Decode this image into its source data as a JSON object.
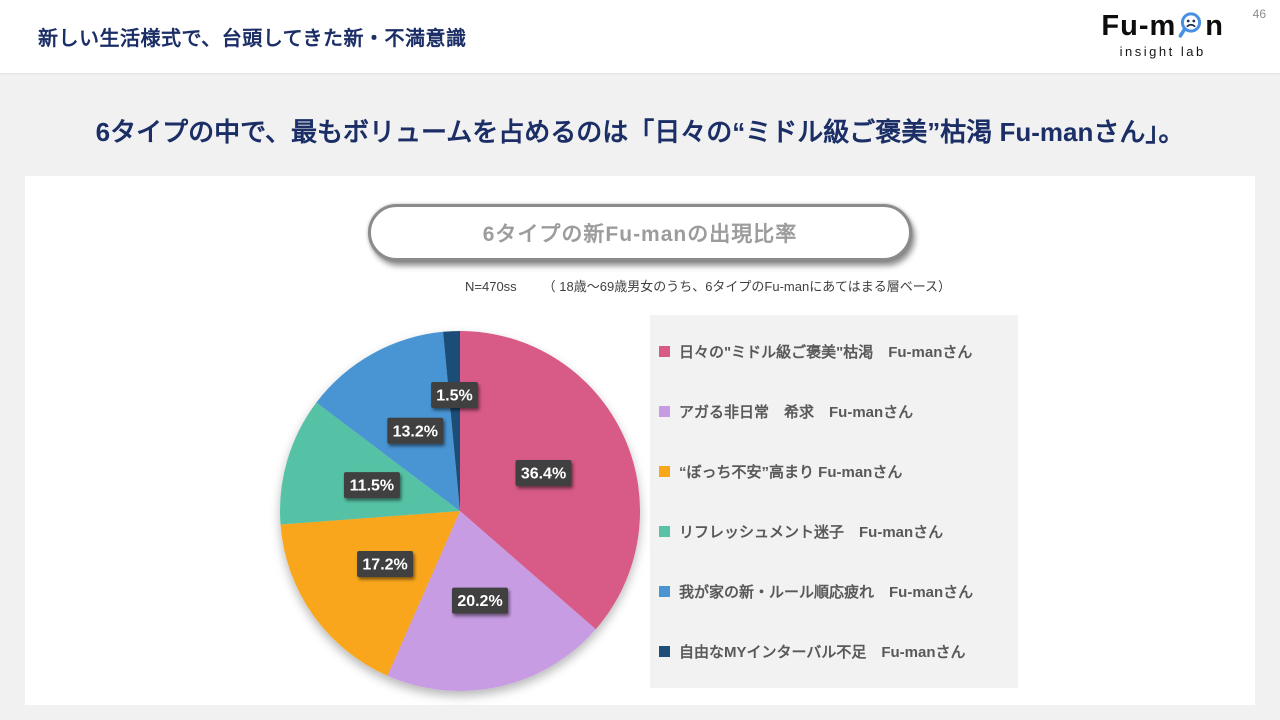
{
  "page_number": "46",
  "header": {
    "title": "新しい生活様式で、台頭してきた新・不満意識"
  },
  "logo": {
    "text_left": "Fu-m",
    "text_right": "n",
    "subtext": "insight lab",
    "icon": "magnifier-sad-face-icon",
    "icon_ring_color": "#4A90E2",
    "icon_face_color": "#1A2F50"
  },
  "headline": "6タイプの中で、最もボリュームを占めるのは「日々の“ミドル級ご褒美”枯渇 Fu-manさん」。",
  "chart_data": {
    "type": "pie",
    "title": "6タイプの新Fu-manの出現比率",
    "n_label": "N=470ss",
    "base_note": "（ 18歳〜69歳男女のうち、6タイプのFu-manにあてはまる層ベース）",
    "start_angle_deg": 0,
    "direction": "clockwise",
    "value_suffix": "%",
    "label_box_color": "#3F3F3F",
    "label_text_color": "#FFFFFF",
    "legend_position": "right",
    "slices": [
      {
        "label": "日々の\"ミドル級ご褒美\"枯渇　Fu-manさん",
        "value": 36.4,
        "color": "#D75A87"
      },
      {
        "label": "アガる非日常　希求　Fu-manさん",
        "value": 20.2,
        "color": "#C79CE3"
      },
      {
        "label": "“ぼっち不安”高まり Fu-manさん",
        "value": 17.2,
        "color": "#F9A61B"
      },
      {
        "label": "リフレッシュメント迷子　Fu-manさん",
        "value": 11.5,
        "color": "#57C2A5"
      },
      {
        "label": "我が家の新・ルール順応疲れ　Fu-manさん",
        "value": 13.2,
        "color": "#4A94D3"
      },
      {
        "label": "自由なMYインターバル不足　Fu-manさん",
        "value": 1.5,
        "color": "#1F4E79"
      }
    ]
  }
}
